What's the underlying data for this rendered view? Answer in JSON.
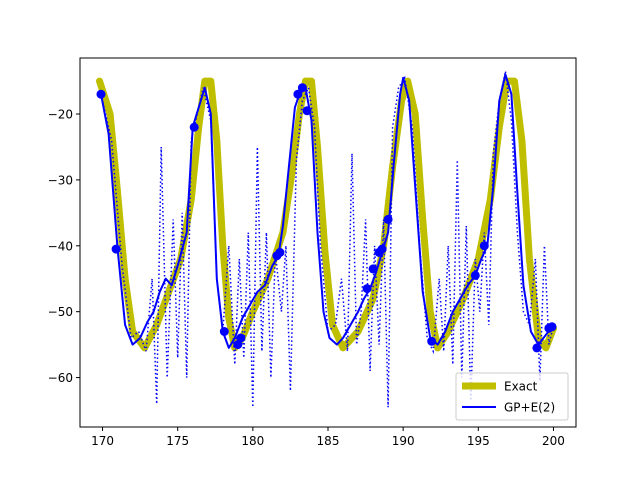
{
  "chart_data": {
    "type": "line",
    "title": "",
    "xlabel": "",
    "ylabel": "",
    "xlim": [
      168.5,
      201.5
    ],
    "ylim": [
      -67.5,
      -11.5
    ],
    "xticks": [
      170,
      175,
      180,
      185,
      190,
      195,
      200
    ],
    "yticks": [
      -60,
      -50,
      -40,
      -30,
      -20
    ],
    "xtick_labels": [
      "170",
      "175",
      "180",
      "185",
      "190",
      "195",
      "200"
    ],
    "ytick_labels": [
      "−60",
      "−50",
      "−40",
      "−30",
      "−20"
    ],
    "grid": false,
    "legend_position": "lower-right",
    "series": [
      {
        "name": "Exact",
        "style": "thick-solid",
        "color": "#bfbf00",
        "x": [
          169.8,
          170.5,
          171.0,
          171.5,
          172.0,
          172.8,
          173.6,
          174.4,
          175.2,
          175.9,
          176.4,
          176.8,
          177.2,
          177.6,
          178.0,
          178.4,
          178.8,
          179.3,
          180.0,
          181.0,
          182.0,
          182.6,
          183.1,
          183.5,
          183.9,
          184.3,
          184.8,
          185.3,
          186.0,
          187.0,
          188.0,
          188.7,
          189.3,
          189.9,
          190.3,
          190.8,
          191.3,
          191.8,
          192.3,
          193.0,
          194.0,
          195.0,
          195.8,
          196.4,
          196.9,
          197.4,
          197.9,
          198.4,
          199.0,
          199.5,
          200.0
        ],
        "y": [
          -15,
          -20,
          -32,
          -45,
          -53,
          -55.5,
          -52,
          -47,
          -42,
          -33,
          -22,
          -15,
          -15,
          -24,
          -40,
          -51,
          -55.5,
          -54,
          -50,
          -45,
          -38,
          -29,
          -20,
          -15,
          -15,
          -25,
          -41,
          -52,
          -55.5,
          -53,
          -48,
          -40,
          -28,
          -18,
          -15,
          -20,
          -36,
          -50,
          -55.5,
          -53,
          -48,
          -42,
          -33,
          -22,
          -15,
          -15,
          -24,
          -42,
          -54,
          -55.5,
          -52.5
        ]
      },
      {
        "name": "GP+E(2)",
        "style": "solid",
        "color": "#0000ff",
        "x": [
          169.9,
          170.4,
          171.0,
          171.5,
          172.0,
          172.5,
          173.0,
          173.4,
          173.8,
          174.2,
          174.6,
          175.0,
          175.3,
          175.6,
          176.0,
          176.4,
          176.8,
          177.2,
          177.6,
          178.0,
          178.4,
          178.8,
          179.3,
          179.8,
          180.3,
          180.8,
          181.3,
          181.7,
          182.0,
          182.4,
          182.8,
          183.1,
          183.5,
          183.9,
          184.3,
          184.7,
          185.1,
          185.6,
          186.0,
          186.5,
          187.0,
          187.4,
          187.8,
          188.2,
          188.6,
          189.0,
          189.4,
          189.8,
          190.0,
          190.4,
          190.8,
          191.3,
          191.8,
          192.3,
          192.8,
          193.3,
          193.8,
          194.3,
          194.8,
          195.2,
          195.6,
          196.0,
          196.4,
          196.8,
          197.2,
          197.6,
          198.0,
          198.5,
          199.0,
          199.5,
          200.0
        ],
        "y": [
          -17,
          -23,
          -40.5,
          -52,
          -55,
          -54,
          -51.5,
          -50,
          -47,
          -45,
          -46,
          -43,
          -40.5,
          -38,
          -22,
          -19,
          -16,
          -20,
          -45,
          -53,
          -55.5,
          -54,
          -51,
          -49,
          -47,
          -46,
          -43,
          -41.5,
          -37,
          -28,
          -19,
          -17,
          -16,
          -21,
          -38,
          -50,
          -54,
          -55,
          -54,
          -52,
          -50,
          -48,
          -46.5,
          -44,
          -41,
          -38,
          -27,
          -17,
          -14.5,
          -18,
          -31,
          -47,
          -54,
          -55,
          -53,
          -50,
          -48,
          -46,
          -44.5,
          -42,
          -40,
          -31,
          -18,
          -14,
          -17,
          -32,
          -46,
          -53,
          -55,
          -53.5,
          -52
        ]
      },
      {
        "name": "",
        "style": "dotted",
        "color": "#0000ff",
        "x": [
          169.9,
          170.6,
          171.3,
          171.9,
          172.4,
          172.9,
          173.3,
          173.6,
          173.9,
          174.3,
          174.7,
          175.0,
          175.3,
          175.6,
          175.9,
          176.2,
          176.7,
          177.2,
          177.6,
          178.0,
          178.4,
          178.8,
          179.1,
          179.4,
          179.7,
          180.0,
          180.3,
          180.6,
          180.9,
          181.2,
          181.5,
          181.9,
          182.2,
          182.5,
          182.9,
          183.3,
          183.7,
          184.1,
          184.5,
          185.0,
          185.5,
          185.9,
          186.3,
          186.6,
          186.9,
          187.2,
          187.5,
          187.8,
          188.1,
          188.4,
          188.7,
          189.0,
          189.3,
          189.7,
          190.1,
          190.6,
          191.1,
          191.6,
          192.0,
          192.4,
          192.7,
          193.0,
          193.3,
          193.6,
          193.9,
          194.2,
          194.5,
          194.8,
          195.1,
          195.4,
          195.7,
          196.0,
          196.4,
          196.8,
          197.2,
          197.6,
          198.0,
          198.4,
          198.8,
          199.1,
          199.4,
          199.7,
          200.0
        ],
        "y": [
          -17,
          -24,
          -43,
          -54,
          -53,
          -56,
          -45,
          -64,
          -25,
          -60,
          -36,
          -57,
          -35,
          -60,
          -24,
          -21,
          -16,
          -21,
          -45,
          -53,
          -40,
          -58,
          -42,
          -57,
          -38,
          -64.5,
          -25,
          -56,
          -38,
          -60,
          -41,
          -50,
          -40,
          -62,
          -27,
          -18,
          -16,
          -22,
          -40,
          -53,
          -52,
          -45,
          -56,
          -26,
          -55,
          -50,
          -36,
          -59,
          -40,
          -55,
          -36,
          -64.5,
          -22,
          -16,
          -14.5,
          -22,
          -40,
          -54,
          -56,
          -45,
          -56,
          -40,
          -58,
          -27,
          -60,
          -37,
          -63.5,
          -42,
          -50,
          -38,
          -52,
          -26,
          -18,
          -13.5,
          -21,
          -38,
          -50,
          -52,
          -42,
          -60.5,
          -40,
          -55,
          -52
        ]
      }
    ],
    "points": {
      "color": "#0000ff",
      "x": [
        169.9,
        170.9,
        176.1,
        178.1,
        179.0,
        179.2,
        181.6,
        181.8,
        183.0,
        183.3,
        183.6,
        187.6,
        188.0,
        188.4,
        188.6,
        189.0,
        191.9,
        194.8,
        195.4,
        198.9,
        199.7,
        199.9
      ],
      "y": [
        -17,
        -40.5,
        -22,
        -53,
        -55,
        -54,
        -41.5,
        -41,
        -17,
        -16,
        -19.5,
        -46.5,
        -43.5,
        -41,
        -40.5,
        -36,
        -54.5,
        -44.5,
        -40,
        -55.5,
        -52.5,
        -52.3
      ]
    }
  },
  "legend": {
    "exact_label": "Exact",
    "gp_label": "GP+E(2)"
  },
  "colors": {
    "exact": "#bfbf00",
    "gp": "#0000ff",
    "axes": "#000000",
    "background": "#ffffff"
  }
}
